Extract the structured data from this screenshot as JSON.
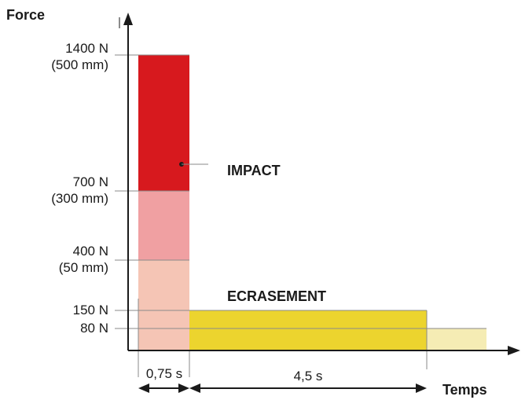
{
  "axes": {
    "y_title": "Force",
    "x_title": "Temps"
  },
  "y_ticks": [
    {
      "force": "1400 N",
      "distance": "(500 mm)"
    },
    {
      "force": "700 N",
      "distance": "(300 mm)"
    },
    {
      "force": "400 N",
      "distance": "(50 mm)"
    },
    {
      "force": "150 N"
    },
    {
      "force": "80 N"
    }
  ],
  "zones": {
    "impact": "IMPACT",
    "ecrasement": "ECRASEMENT"
  },
  "durations": {
    "first": "0,75 s",
    "second": "4,5 s"
  },
  "colors": {
    "impact_red": "#d7191e",
    "pink_mid": "#f0a0a2",
    "pink_light": "#f5c5b5",
    "yellow": "#ecd42e",
    "yellow_light": "#f5ecb4"
  }
}
